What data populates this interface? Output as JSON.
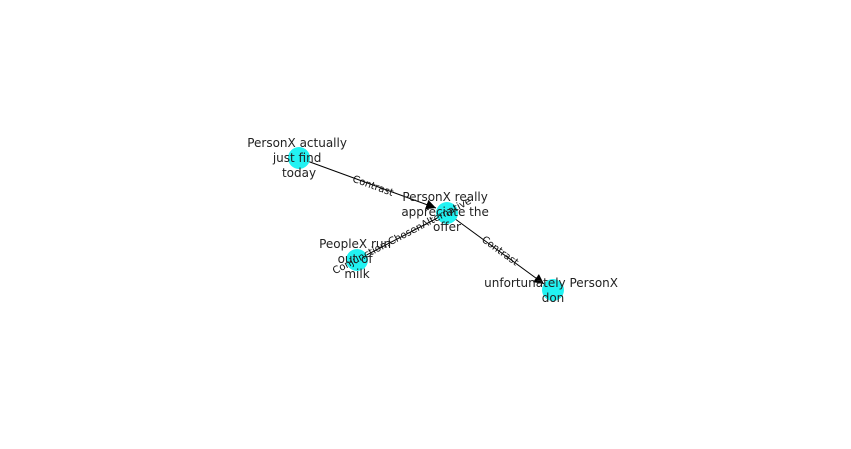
{
  "colors": {
    "node_fill": "#22f2f2",
    "edge": "#000000",
    "text": "#222222"
  },
  "nodes": [
    {
      "id": "n1",
      "lines": [
        "PersonX actually",
        "just find",
        "today"
      ]
    },
    {
      "id": "n2",
      "lines": [
        "PersonX really",
        "appreciate the",
        "offer"
      ]
    },
    {
      "id": "n3",
      "lines": [
        "PeopleX run",
        "out of",
        "milk"
      ]
    },
    {
      "id": "n4",
      "lines": [
        "unfortunately PersonX",
        "don"
      ]
    }
  ],
  "edges": [
    {
      "from": "n1",
      "to": "n2",
      "label": "Contrast",
      "directed": true
    },
    {
      "from": "n3",
      "to": "n2",
      "label": "Conjunction.ChosenAlternative",
      "directed": false
    },
    {
      "from": "n2",
      "to": "n4",
      "label": "Contrast",
      "directed": true
    }
  ]
}
